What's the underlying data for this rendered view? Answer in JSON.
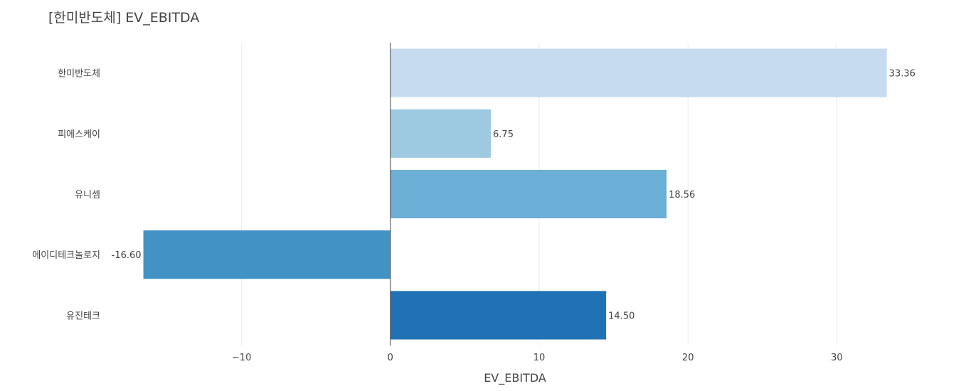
{
  "chart_data": {
    "type": "bar",
    "orientation": "horizontal",
    "title": "[한미반도체] EV_EBITDA",
    "xlabel": "EV_EBITDA",
    "ylabel": "",
    "categories": [
      "한미반도체",
      "피에스케이",
      "유니셈",
      "에이디테크놀로지",
      "유진테크"
    ],
    "values": [
      33.36,
      6.75,
      18.56,
      -16.6,
      14.5
    ],
    "value_labels": [
      "33.36",
      "6.75",
      "18.56",
      "-16.60",
      "14.50"
    ],
    "colors": [
      "#c6dbef",
      "#9ecae1",
      "#6baed6",
      "#4292c6",
      "#2171b5"
    ],
    "xlim": [
      -19.4,
      36.1
    ],
    "xticks": [
      -10,
      0,
      10,
      20,
      30
    ],
    "xtick_labels": [
      "−10",
      "0",
      "10",
      "20",
      "30"
    ],
    "grid": true,
    "legend": "none"
  }
}
